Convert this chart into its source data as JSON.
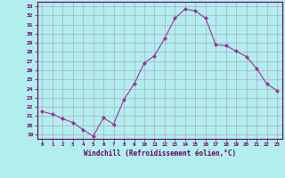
{
  "x": [
    0,
    1,
    2,
    3,
    4,
    5,
    6,
    7,
    8,
    9,
    10,
    11,
    12,
    13,
    14,
    15,
    16,
    17,
    18,
    19,
    20,
    21,
    22,
    23
  ],
  "y": [
    21.5,
    21.2,
    20.7,
    20.3,
    19.5,
    18.8,
    20.8,
    20.1,
    22.8,
    24.5,
    26.8,
    27.6,
    29.5,
    31.7,
    32.7,
    32.5,
    31.7,
    28.8,
    28.7,
    28.1,
    27.5,
    26.2,
    24.5,
    23.8
  ],
  "line_color": "#993399",
  "marker": "D",
  "marker_size": 2,
  "bg_color": "#b2eeee",
  "grid_color": "#aaaacc",
  "xlabel": "Windchill (Refroidissement éolien,°C)",
  "ylabel_ticks": [
    19,
    20,
    21,
    22,
    23,
    24,
    25,
    26,
    27,
    28,
    29,
    30,
    31,
    32,
    33
  ],
  "ylim": [
    18.5,
    33.5
  ],
  "xlim": [
    -0.5,
    23.5
  ],
  "axis_color": "#660066",
  "tick_color": "#660066",
  "label_color": "#660066"
}
